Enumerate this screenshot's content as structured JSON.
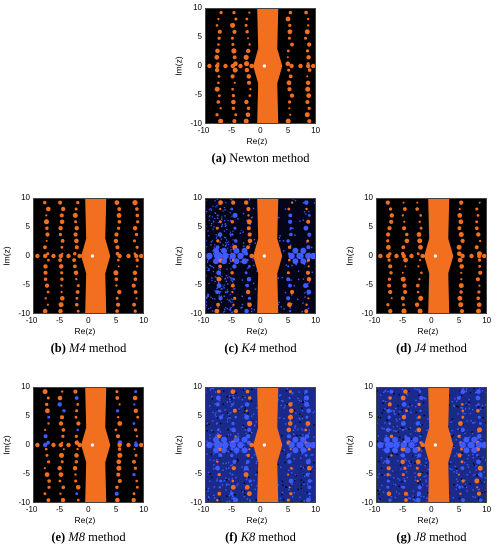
{
  "panels": [
    {
      "id": "a",
      "letter": "(a)",
      "name": "Newton",
      "suffix": " method",
      "italic_name": false,
      "variant": "newton"
    },
    {
      "id": "b",
      "letter": "(b)",
      "name": "M4",
      "suffix": " method",
      "italic_name": true,
      "variant": "m4"
    },
    {
      "id": "c",
      "letter": "(c)",
      "name": "K4",
      "suffix": " method",
      "italic_name": true,
      "variant": "k4"
    },
    {
      "id": "d",
      "letter": "(d)",
      "name": "J4",
      "suffix": " method",
      "italic_name": true,
      "variant": "j4"
    },
    {
      "id": "e",
      "letter": "(e)",
      "name": "M8",
      "suffix": " method",
      "italic_name": true,
      "variant": "m8"
    },
    {
      "id": "f",
      "letter": "(f)",
      "name": "K8",
      "suffix": " method",
      "italic_name": true,
      "variant": "k8"
    },
    {
      "id": "g",
      "letter": "(g)",
      "name": "J8",
      "suffix": " method",
      "italic_name": true,
      "variant": "j8"
    }
  ],
  "axes": {
    "xlabel": "Re(z)",
    "ylabel": "Im(z)",
    "xticks": [
      "-10",
      "-5",
      "0",
      "5",
      "10"
    ],
    "yticks": [
      "10",
      "5",
      "0",
      "-5",
      "-10"
    ]
  },
  "colors": {
    "background": "#000000",
    "orange_basin": "#f26f1f",
    "blue_basin": "#3f5bff",
    "root_marker": "#ffffff"
  }
}
